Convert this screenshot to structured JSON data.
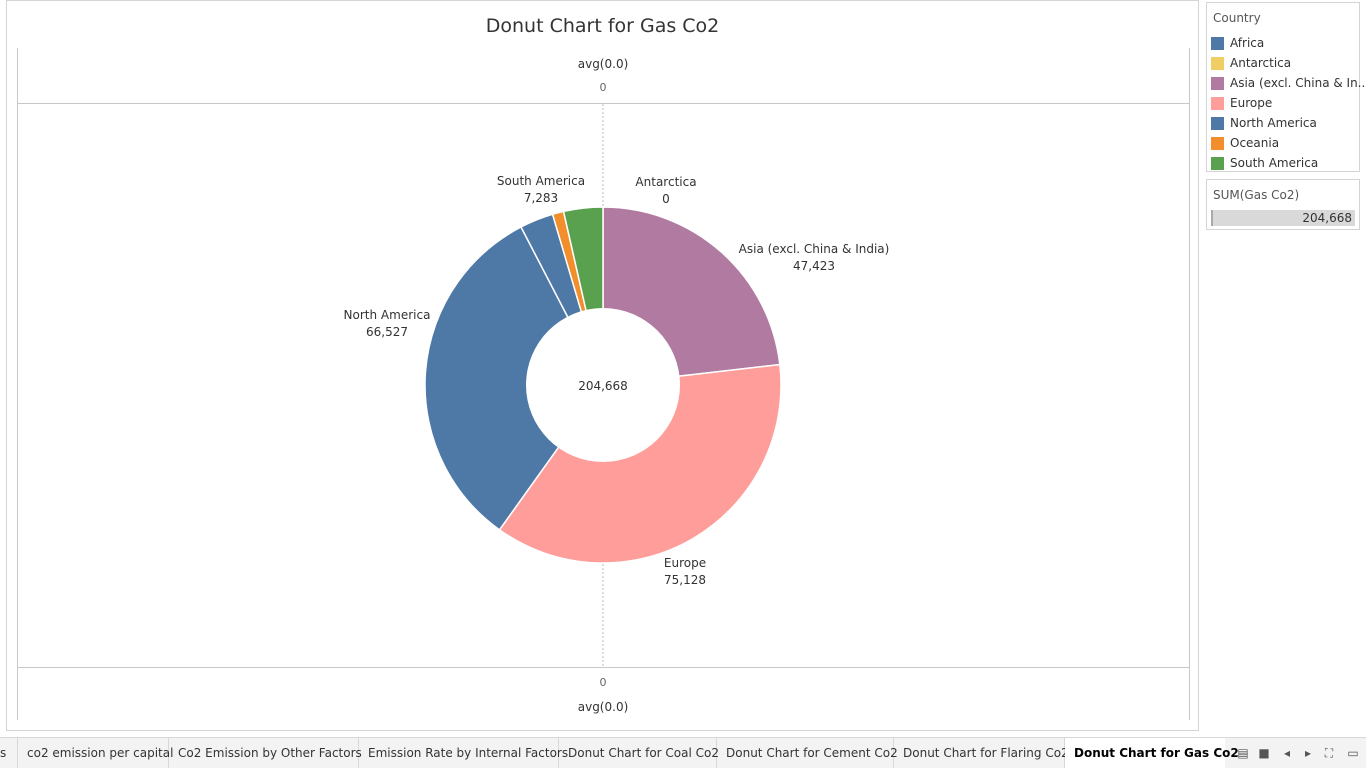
{
  "chart_data": {
    "type": "pie",
    "title": "Donut Chart for Gas Co2",
    "center_label": "204,668",
    "slices": [
      {
        "name": "Africa",
        "value": 6234,
        "color": "#4e79a7"
      },
      {
        "name": "Antarctica",
        "value": 0,
        "color": "#f1ce63"
      },
      {
        "name": "Asia (excl. China & India)",
        "value": 47423,
        "color": "#b07aa1"
      },
      {
        "name": "Europe",
        "value": 75128,
        "color": "#ff9d9a"
      },
      {
        "name": "North America",
        "value": 66527,
        "color": "#4e79a7"
      },
      {
        "name": "Oceania",
        "value": 2073,
        "color": "#f28e2b"
      },
      {
        "name": "South America",
        "value": 7283,
        "color": "#59a14f"
      }
    ],
    "labels": [
      {
        "name": "Antarctica",
        "value": "0"
      },
      {
        "name": "Asia (excl. China & India)",
        "value": "47,423"
      },
      {
        "name": "Europe",
        "value": "75,128"
      },
      {
        "name": "North America",
        "value": "66,527"
      },
      {
        "name": "South America",
        "value": "7,283"
      }
    ]
  },
  "axis": {
    "top_label": "avg(0.0)",
    "top_tick": "0",
    "bottom_label": "avg(0.0)",
    "bottom_tick": "0"
  },
  "legend": {
    "title": "Country",
    "items": [
      {
        "label": "Africa",
        "color": "#4e79a7"
      },
      {
        "label": "Antarctica",
        "color": "#f1ce63"
      },
      {
        "label": "Asia (excl. China & In..",
        "color": "#b07aa1"
      },
      {
        "label": "Europe",
        "color": "#ff9d9a"
      },
      {
        "label": "North America",
        "color": "#4e79a7"
      },
      {
        "label": "Oceania",
        "color": "#f28e2b"
      },
      {
        "label": "South America",
        "color": "#59a14f"
      }
    ]
  },
  "size_legend": {
    "title": "SUM(Gas Co2)",
    "value": "204,668"
  },
  "tabs": [
    {
      "label": "s",
      "active": false
    },
    {
      "label": "co2 emission per capital",
      "active": false
    },
    {
      "label": "Co2 Emission by Other Factors",
      "active": false
    },
    {
      "label": "Emission Rate by Internal Factors",
      "active": false
    },
    {
      "label": "Donut Chart for Coal Co2",
      "active": false
    },
    {
      "label": "Donut Chart for Cement Co2",
      "active": false
    },
    {
      "label": "Donut Chart for Flaring Co2",
      "active": false
    },
    {
      "label": "Donut Chart for Gas Co2",
      "active": true
    }
  ],
  "nav_icons": [
    "grid-icon",
    "square-icon",
    "prev-icon",
    "next-icon",
    "fullscreen-icon",
    "present-icon"
  ]
}
